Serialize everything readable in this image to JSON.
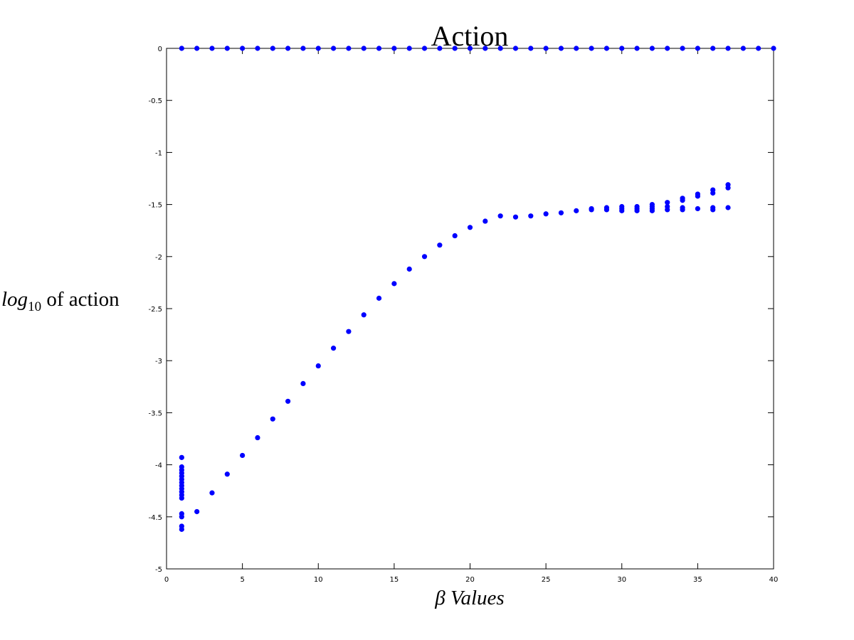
{
  "chart_data": {
    "type": "scatter",
    "title": "Action",
    "xlabel": "β Values",
    "ylabel_math": "log",
    "ylabel_sub": "10",
    "ylabel_rest": " of action",
    "xlim": [
      0,
      40
    ],
    "ylim": [
      -5,
      0
    ],
    "xticks": [
      0,
      5,
      10,
      15,
      20,
      25,
      30,
      35,
      40
    ],
    "yticks": [
      0,
      -0.5,
      -1,
      -1.5,
      -2,
      -2.5,
      -3,
      -3.5,
      -4,
      -4.5,
      -5
    ],
    "xtick_labels": [
      "0",
      "5",
      "10",
      "15",
      "20",
      "25",
      "30",
      "35",
      "40"
    ],
    "ytick_labels": [
      "0",
      "-0.5",
      "-1",
      "-1.5",
      "-2",
      "-2.5",
      "-3",
      "-3.5",
      "-4",
      "-4.5",
      "-5"
    ],
    "grid": false,
    "marker_color": "#0000ff",
    "series": [
      {
        "points": [
          [
            1,
            0
          ],
          [
            2,
            0
          ],
          [
            3,
            0
          ],
          [
            4,
            0
          ],
          [
            5,
            0
          ],
          [
            6,
            0
          ],
          [
            7,
            0
          ],
          [
            8,
            0
          ],
          [
            9,
            0
          ],
          [
            10,
            0
          ],
          [
            11,
            0
          ],
          [
            12,
            0
          ],
          [
            13,
            0
          ],
          [
            14,
            0
          ],
          [
            15,
            0
          ],
          [
            16,
            0
          ],
          [
            17,
            0
          ],
          [
            18,
            0
          ],
          [
            19,
            0
          ],
          [
            20,
            0
          ],
          [
            21,
            0
          ],
          [
            22,
            0
          ],
          [
            23,
            0
          ],
          [
            24,
            0
          ],
          [
            25,
            0
          ],
          [
            26,
            0
          ],
          [
            27,
            0
          ],
          [
            28,
            0
          ],
          [
            29,
            0
          ],
          [
            30,
            0
          ],
          [
            31,
            0
          ],
          [
            32,
            0
          ],
          [
            33,
            0
          ],
          [
            34,
            0
          ],
          [
            35,
            0
          ],
          [
            36,
            0
          ],
          [
            37,
            0
          ],
          [
            38,
            0
          ],
          [
            39,
            0
          ],
          [
            40,
            0
          ],
          [
            1,
            -3.93
          ],
          [
            1,
            -4.02
          ],
          [
            1,
            -4.05
          ],
          [
            1,
            -4.08
          ],
          [
            1,
            -4.11
          ],
          [
            1,
            -4.14
          ],
          [
            1,
            -4.17
          ],
          [
            1,
            -4.2
          ],
          [
            1,
            -4.23
          ],
          [
            1,
            -4.26
          ],
          [
            1,
            -4.29
          ],
          [
            1,
            -4.32
          ],
          [
            1,
            -4.47
          ],
          [
            1,
            -4.5
          ],
          [
            1,
            -4.59
          ],
          [
            1,
            -4.62
          ],
          [
            2,
            -4.45
          ],
          [
            3,
            -4.27
          ],
          [
            4,
            -4.09
          ],
          [
            5,
            -3.91
          ],
          [
            6,
            -3.74
          ],
          [
            7,
            -3.56
          ],
          [
            8,
            -3.39
          ],
          [
            9,
            -3.22
          ],
          [
            10,
            -3.05
          ],
          [
            11,
            -2.88
          ],
          [
            12,
            -2.72
          ],
          [
            13,
            -2.56
          ],
          [
            14,
            -2.4
          ],
          [
            15,
            -2.26
          ],
          [
            16,
            -2.12
          ],
          [
            17,
            -2.0
          ],
          [
            18,
            -1.89
          ],
          [
            19,
            -1.8
          ],
          [
            20,
            -1.72
          ],
          [
            21,
            -1.66
          ],
          [
            22,
            -1.61
          ],
          [
            23,
            -1.62
          ],
          [
            24,
            -1.61
          ],
          [
            25,
            -1.59
          ],
          [
            26,
            -1.58
          ],
          [
            27,
            -1.56
          ],
          [
            28,
            -1.55
          ],
          [
            28,
            -1.54
          ],
          [
            29,
            -1.55
          ],
          [
            29,
            -1.53
          ],
          [
            30,
            -1.56
          ],
          [
            30,
            -1.54
          ],
          [
            30,
            -1.52
          ],
          [
            31,
            -1.56
          ],
          [
            31,
            -1.54
          ],
          [
            31,
            -1.52
          ],
          [
            32,
            -1.56
          ],
          [
            32,
            -1.54
          ],
          [
            32,
            -1.52
          ],
          [
            32,
            -1.5
          ],
          [
            33,
            -1.55
          ],
          [
            33,
            -1.52
          ],
          [
            33,
            -1.48
          ],
          [
            34,
            -1.55
          ],
          [
            34,
            -1.53
          ],
          [
            34,
            -1.46
          ],
          [
            34,
            -1.44
          ],
          [
            35,
            -1.54
          ],
          [
            35,
            -1.42
          ],
          [
            35,
            -1.4
          ],
          [
            36,
            -1.55
          ],
          [
            36,
            -1.53
          ],
          [
            36,
            -1.39
          ],
          [
            36,
            -1.36
          ],
          [
            37,
            -1.53
          ],
          [
            37,
            -1.34
          ],
          [
            37,
            -1.31
          ]
        ]
      }
    ]
  }
}
